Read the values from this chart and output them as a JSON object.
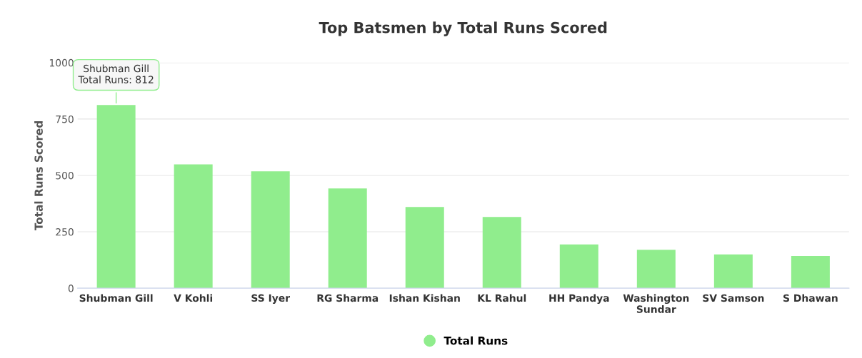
{
  "chart_data": {
    "type": "bar",
    "title": "Top Batsmen by Total Runs Scored",
    "ylabel": "Total Runs Scored",
    "categories": [
      "Shubman Gill",
      "V Kohli",
      "SS Iyer",
      "RG Sharma",
      "Ishan Kishan",
      "KL Rahul",
      "HH Pandya",
      "Washington\nSundar",
      "SV Samson",
      "S Dhawan"
    ],
    "series": [
      {
        "name": "Total Runs",
        "color": "#90ed8d",
        "values": [
          812,
          549,
          518,
          442,
          360,
          316,
          194,
          170,
          150,
          143
        ]
      }
    ],
    "ylim": [
      0,
      1000
    ],
    "yticks": [
      0,
      250,
      500,
      750,
      1000
    ],
    "grid": "y",
    "legend": "bottom",
    "annotations": [
      {
        "text": "Shubman Gill\nTotal Runs: 812",
        "x": "Shubman Gill",
        "y": 812
      }
    ]
  }
}
